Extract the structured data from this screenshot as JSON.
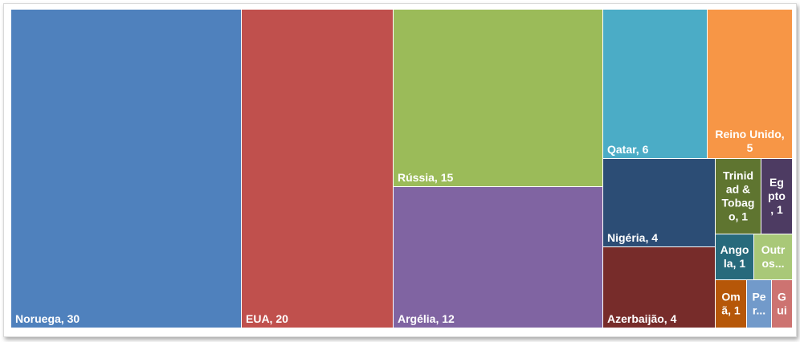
{
  "chart_data": {
    "type": "treemap",
    "title": "",
    "items": [
      {
        "label": "Noruega, 30",
        "name": "Noruega",
        "value": 30,
        "color": "#4f81bd"
      },
      {
        "label": "EUA, 20",
        "name": "EUA",
        "value": 20,
        "color": "#c0504d"
      },
      {
        "label": "Rússia, 15",
        "name": "Rússia",
        "value": 15,
        "color": "#9bbb59"
      },
      {
        "label": "Argélia, 12",
        "name": "Argélia",
        "value": 12,
        "color": "#8064a2"
      },
      {
        "label": "Qatar, 6",
        "name": "Qatar",
        "value": 6,
        "color": "#4bacc6"
      },
      {
        "label": "Reino Unido, 5",
        "name": "Reino Unido",
        "value": 5,
        "color": "#f79646"
      },
      {
        "label": "Nigéria, 4",
        "name": "Nigéria",
        "value": 4,
        "color": "#2c4d75"
      },
      {
        "label": "Azerbaijão, 4",
        "name": "Azerbaijão",
        "value": 4,
        "color": "#772c2a"
      },
      {
        "label": "Trinidad & Tobago, 1",
        "name": "Trinidad & Tobago",
        "value": 1,
        "color": "#5f7530"
      },
      {
        "label": "Egipto, 1",
        "name": "Egipto",
        "value": 1,
        "color": "#4d3b62"
      },
      {
        "label": "Angola, 1",
        "name": "Angola",
        "value": 1,
        "color": "#276a7c"
      },
      {
        "label": "Outros...",
        "name": "Outros",
        "value": 1,
        "color": "#a9c878"
      },
      {
        "label": "Omã, 1",
        "name": "Omã",
        "value": 1,
        "color": "#b65708"
      },
      {
        "label": "Pe...",
        "name": "Pe...",
        "value": 1,
        "color": "#729aca"
      },
      {
        "label": "Gui",
        "name": "Gui",
        "value": 1,
        "color": "#cd7371"
      }
    ]
  }
}
